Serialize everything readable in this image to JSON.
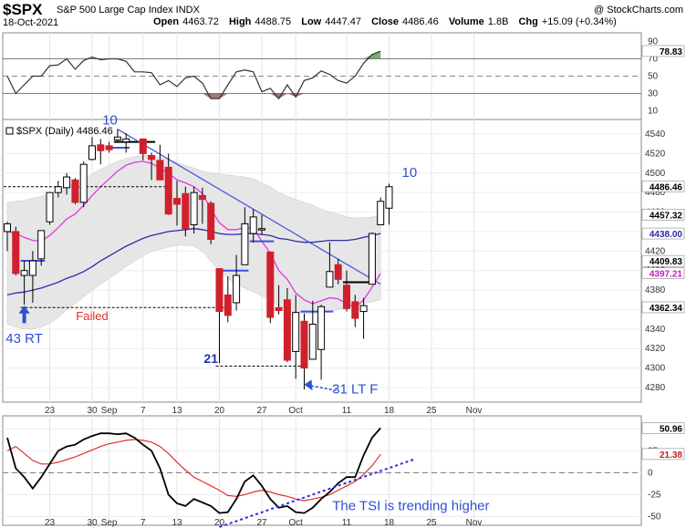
{
  "header": {
    "symbol": "$SPX",
    "description": "S&P 500 Large Cap Index  INDX",
    "date": "18-Oct-2021",
    "open_label": "Open",
    "open": "4463.72",
    "high_label": "High",
    "high": "4488.75",
    "low_label": "Low",
    "low": "4447.47",
    "close_label": "Close",
    "close": "4486.46",
    "volume_label": "Volume",
    "volume": "1.8B",
    "chg_label": "Chg",
    "chg": "+15.09 (+0.34%)",
    "watermark": "@ StockCharts.com"
  },
  "colors": {
    "up": "#ffffff",
    "down": "#d0202c",
    "outline": "#000000",
    "bb_fill": "#e6e6e6",
    "ma_short": "#e535e5",
    "ma_long": "#2c2ca8",
    "trend": "#3d4fe0",
    "tsi": "#000000",
    "tsi_signal": "#e03030",
    "rsi_line": "#333333",
    "rsi_over": "#3a8a3a",
    "rsi_under": "#8a3a3a"
  },
  "chart_data": [
    {
      "type": "candlestick",
      "panel": "price",
      "title": "$SPX (Daily) 4486.46",
      "ylim": [
        4265,
        4555
      ],
      "y_ticks": [
        4280,
        4300,
        4320,
        4340,
        4360,
        4380,
        4400,
        4420,
        4440,
        4460,
        4480,
        4500,
        4520,
        4540
      ],
      "x_ticks": [
        "23",
        "30",
        "Sep",
        "7",
        "13",
        "20",
        "27",
        "Oct",
        "11",
        "18",
        "25",
        "Nov"
      ],
      "y_price_labels": [
        {
          "label": "4486.46",
          "value": 4486.46,
          "bg": "#ffffff",
          "fg": "#000000"
        },
        {
          "label": "4457.32",
          "value": 4457.32,
          "bg": "#ffffff",
          "fg": "#000000"
        },
        {
          "label": "4438.00",
          "value": 4438.0,
          "bg": "#ffffff",
          "fg": "#2c2ca8"
        },
        {
          "label": "4409.83",
          "value": 4409.83,
          "bg": "#ffffff",
          "fg": "#000000"
        },
        {
          "label": "4397.21",
          "value": 4397.21,
          "bg": "#ffffff",
          "fg": "#c020c0"
        },
        {
          "label": "4362.34",
          "value": 4362.34,
          "bg": "#ffffff",
          "fg": "#000000"
        }
      ],
      "candles": [
        {
          "d": "2021-08-16",
          "o": 4440,
          "h": 4450,
          "l": 4420,
          "c": 4448
        },
        {
          "d": "2021-08-17",
          "o": 4440,
          "h": 4445,
          "l": 4395,
          "c": 4397
        },
        {
          "d": "2021-08-18",
          "o": 4395,
          "h": 4410,
          "l": 4365,
          "c": 4400
        },
        {
          "d": "2021-08-19",
          "o": 4395,
          "h": 4420,
          "l": 4367,
          "c": 4410
        },
        {
          "d": "2021-08-20",
          "o": 4412,
          "h": 4440,
          "l": 4405,
          "c": 4441
        },
        {
          "d": "2021-08-23",
          "o": 4450,
          "h": 4480,
          "l": 4447,
          "c": 4480
        },
        {
          "d": "2021-08-24",
          "o": 4480,
          "h": 4492,
          "l": 4475,
          "c": 4486
        },
        {
          "d": "2021-08-25",
          "o": 4485,
          "h": 4500,
          "l": 4478,
          "c": 4496
        },
        {
          "d": "2021-08-26",
          "o": 4493,
          "h": 4495,
          "l": 4468,
          "c": 4470
        },
        {
          "d": "2021-08-27",
          "o": 4470,
          "h": 4512,
          "l": 4465,
          "c": 4509
        },
        {
          "d": "2021-08-30",
          "o": 4514,
          "h": 4537,
          "l": 4513,
          "c": 4528
        },
        {
          "d": "2021-08-31",
          "o": 4529,
          "h": 4535,
          "l": 4509,
          "c": 4523
        },
        {
          "d": "2021-09-01",
          "o": 4528,
          "h": 4532,
          "l": 4521,
          "c": 4524
        },
        {
          "d": "2021-09-02",
          "o": 4534,
          "h": 4545,
          "l": 4531,
          "c": 4537
        },
        {
          "d": "2021-09-03",
          "o": 4532,
          "h": 4541,
          "l": 4521,
          "c": 4535
        },
        {
          "d": "2021-09-07",
          "o": 4535,
          "h": 4535,
          "l": 4513,
          "c": 4520
        },
        {
          "d": "2021-09-08",
          "o": 4518,
          "h": 4521,
          "l": 4493,
          "c": 4514
        },
        {
          "d": "2021-09-09",
          "o": 4513,
          "h": 4529,
          "l": 4493,
          "c": 4493
        },
        {
          "d": "2021-09-10",
          "o": 4506,
          "h": 4520,
          "l": 4457,
          "c": 4458
        },
        {
          "d": "2021-09-13",
          "o": 4474,
          "h": 4492,
          "l": 4446,
          "c": 4468
        },
        {
          "d": "2021-09-14",
          "o": 4479,
          "h": 4486,
          "l": 4435,
          "c": 4443
        },
        {
          "d": "2021-09-15",
          "o": 4447,
          "h": 4486,
          "l": 4438,
          "c": 4480
        },
        {
          "d": "2021-09-16",
          "o": 4477,
          "h": 4485,
          "l": 4448,
          "c": 4473
        },
        {
          "d": "2021-09-17",
          "o": 4469,
          "h": 4471,
          "l": 4427,
          "c": 4432
        },
        {
          "d": "2021-09-20",
          "o": 4402,
          "h": 4402,
          "l": 4305,
          "c": 4358
        },
        {
          "d": "2021-09-21",
          "o": 4375,
          "h": 4394,
          "l": 4347,
          "c": 4354
        },
        {
          "d": "2021-09-22",
          "o": 4367,
          "h": 4416,
          "l": 4359,
          "c": 4395
        },
        {
          "d": "2021-09-23",
          "o": 4406,
          "h": 4465,
          "l": 4406,
          "c": 4448
        },
        {
          "d": "2021-09-24",
          "o": 4438,
          "h": 4463,
          "l": 4429,
          "c": 4455
        },
        {
          "d": "2021-09-27",
          "o": 4442,
          "h": 4457,
          "l": 4437,
          "c": 4443
        },
        {
          "d": "2021-09-28",
          "o": 4419,
          "h": 4419,
          "l": 4346,
          "c": 4352
        },
        {
          "d": "2021-09-29",
          "o": 4362,
          "h": 4385,
          "l": 4355,
          "c": 4359
        },
        {
          "d": "2021-09-30",
          "o": 4370,
          "h": 4382,
          "l": 4306,
          "c": 4308
        },
        {
          "d": "2021-10-01",
          "o": 4317,
          "h": 4375,
          "l": 4289,
          "c": 4357
        },
        {
          "d": "2021-10-04",
          "o": 4348,
          "h": 4356,
          "l": 4278,
          "c": 4300
        },
        {
          "d": "2021-10-05",
          "o": 4309,
          "h": 4369,
          "l": 4309,
          "c": 4345
        },
        {
          "d": "2021-10-06",
          "o": 4319,
          "h": 4365,
          "l": 4288,
          "c": 4363
        },
        {
          "d": "2021-10-07",
          "o": 4383,
          "h": 4429,
          "l": 4383,
          "c": 4399
        },
        {
          "d": "2021-10-08",
          "o": 4406,
          "h": 4412,
          "l": 4386,
          "c": 4391
        },
        {
          "d": "2021-10-11",
          "o": 4385,
          "h": 4400,
          "l": 4358,
          "c": 4361
        },
        {
          "d": "2021-10-12",
          "o": 4368,
          "h": 4375,
          "l": 4342,
          "c": 4351
        },
        {
          "d": "2021-10-13",
          "o": 4358,
          "h": 4372,
          "l": 4330,
          "c": 4364
        },
        {
          "d": "2021-10-14",
          "o": 4386,
          "h": 4439,
          "l": 4386,
          "c": 4438
        },
        {
          "d": "2021-10-15",
          "o": 4447,
          "h": 4475,
          "l": 4447,
          "c": 4471
        },
        {
          "d": "2021-10-18",
          "o": 4464,
          "h": 4489,
          "l": 4447,
          "c": 4486
        }
      ],
      "ma_short": [
        4440,
        4438,
        4434,
        4431,
        4430,
        4436,
        4444,
        4453,
        4458,
        4467,
        4477,
        4486,
        4494,
        4502,
        4508,
        4511,
        4512,
        4510,
        4505,
        4500,
        4493,
        4490,
        4486,
        4479,
        4463,
        4449,
        4442,
        4442,
        4444,
        4444,
        4430,
        4418,
        4400,
        4391,
        4377,
        4370,
        4366,
        4369,
        4372,
        4371,
        4366,
        4362,
        4370,
        4383,
        4397
      ],
      "ma_long": [
        4375,
        4377,
        4378,
        4380,
        4382,
        4385,
        4388,
        4392,
        4395,
        4399,
        4404,
        4410,
        4415,
        4420,
        4425,
        4429,
        4433,
        4436,
        4438,
        4440,
        4441,
        4442,
        4443,
        4442,
        4440,
        4438,
        4437,
        4437,
        4438,
        4438,
        4437,
        4436,
        4433,
        4432,
        4430,
        4429,
        4429,
        4430,
        4431,
        4431,
        4431,
        4432,
        4434,
        4436,
        4438
      ],
      "bb_upper": [
        4470,
        4471,
        4472,
        4474,
        4476,
        4479,
        4482,
        4486,
        4490,
        4494,
        4499,
        4504,
        4508,
        4512,
        4515,
        4517,
        4518,
        4518,
        4516,
        4514,
        4511,
        4508,
        4505,
        4502,
        4500,
        4499,
        4498,
        4497,
        4496,
        4494,
        4490,
        4486,
        4480,
        4476,
        4473,
        4470,
        4467,
        4463,
        4460,
        4458,
        4455,
        4454,
        4454,
        4455,
        4456
      ],
      "bb_lower": [
        4345,
        4342,
        4340,
        4340,
        4342,
        4346,
        4352,
        4360,
        4366,
        4373,
        4380,
        4386,
        4392,
        4398,
        4404,
        4410,
        4415,
        4420,
        4422,
        4424,
        4426,
        4426,
        4425,
        4420,
        4410,
        4400,
        4392,
        4386,
        4382,
        4378,
        4374,
        4370,
        4364,
        4360,
        4357,
        4356,
        4356,
        4357,
        4358,
        4360,
        4362,
        4364,
        4366,
        4368,
        4370
      ],
      "horizontal_levels": [
        {
          "value": 4486,
          "style": "dashed",
          "color": "#000000",
          "from": "2021-08-16",
          "to": "2021-09-10"
        },
        {
          "value": 4362,
          "style": "dashed",
          "color": "#000000",
          "from": "2021-08-18",
          "to": "2021-09-21"
        },
        {
          "value": 4302,
          "style": "dashed",
          "color": "#000000",
          "from": "2021-09-20",
          "to": "2021-10-04"
        },
        {
          "value": 4410,
          "style": "solid",
          "color": "#3d4fe0",
          "from": "2021-08-18",
          "to": "2021-08-20"
        },
        {
          "value": 4532,
          "style": "solid",
          "color": "#000000",
          "from": "2021-09-02",
          "to": "2021-09-08"
        },
        {
          "value": 4526,
          "style": "solid",
          "color": "#3d4fe0",
          "from": "2021-09-01",
          "to": "2021-09-03"
        },
        {
          "value": 4400,
          "style": "solid",
          "color": "#3d4fe0",
          "from": "2021-09-20",
          "to": "2021-09-23"
        },
        {
          "value": 4430,
          "style": "solid",
          "color": "#3d4fe0",
          "from": "2021-09-24",
          "to": "2021-09-28"
        },
        {
          "value": 4358,
          "style": "solid",
          "color": "#3d4fe0",
          "from": "2021-10-04",
          "to": "2021-10-07"
        },
        {
          "value": 4388,
          "style": "solid",
          "color": "#000000",
          "from": "2021-10-11",
          "to": "2021-10-14"
        }
      ],
      "trendline": {
        "from": {
          "d": "2021-09-02",
          "v": 4545
        },
        "to": {
          "d": "2021-10-15",
          "v": 4386
        }
      },
      "annotations": [
        {
          "text": "10",
          "d": "2021-09-02",
          "v": 4550,
          "cls": "ann-blue",
          "anchor": "end"
        },
        {
          "text": "10",
          "d": "2021-10-18",
          "v": 4496,
          "cls": "ann-blue",
          "anchor": "start",
          "dx": 14
        },
        {
          "text": "Failed",
          "d": "2021-08-30",
          "v": 4349,
          "cls": "ann-red",
          "anchor": "middle"
        },
        {
          "text": "43 RT",
          "d": "2021-08-18",
          "v": 4326,
          "cls": "ann-blue",
          "anchor": "middle"
        },
        {
          "text": "21",
          "d": "2021-09-17",
          "v": 4305,
          "cls": "ann-bold",
          "anchor": "middle"
        },
        {
          "text": "31 LT F",
          "d": "2021-10-12",
          "v": 4274,
          "cls": "ann-blue",
          "anchor": "middle"
        }
      ]
    },
    {
      "type": "line",
      "panel": "rsi",
      "ylim": [
        0,
        100
      ],
      "y_ticks": [
        10,
        30,
        50,
        70,
        90
      ],
      "levels": [
        30,
        70
      ],
      "last_value_label": "78.83",
      "series": [
        {
          "values": [
            50,
            30,
            40,
            50,
            50,
            62,
            63,
            70,
            58,
            68,
            72,
            69,
            70,
            70,
            67,
            55,
            55,
            54,
            40,
            45,
            38,
            48,
            50,
            42,
            24,
            24,
            40,
            55,
            57,
            55,
            32,
            36,
            24,
            40,
            26,
            45,
            48,
            56,
            52,
            45,
            42,
            50,
            65,
            75,
            79
          ]
        }
      ]
    },
    {
      "type": "line",
      "panel": "tsi",
      "ylim": [
        -60,
        65
      ],
      "y_ticks": [
        -50,
        -25,
        0,
        25,
        50
      ],
      "zero_line": true,
      "last_value_labels": [
        "50.96",
        "21.38"
      ],
      "series": [
        {
          "values": [
            40,
            5,
            -5,
            -18,
            -5,
            10,
            25,
            30,
            32,
            38,
            42,
            45,
            45,
            44,
            45,
            40,
            32,
            25,
            5,
            -25,
            -35,
            -38,
            -30,
            -34,
            -38,
            -46,
            -45,
            -30,
            -10,
            -3,
            -15,
            -30,
            -40,
            -38,
            -45,
            -46,
            -40,
            -30,
            -22,
            -12,
            -5,
            -5,
            20,
            40,
            51
          ]
        },
        {
          "values": [
            25,
            30,
            22,
            14,
            10,
            10,
            12,
            15,
            18,
            22,
            26,
            30,
            33,
            35,
            37,
            38,
            37,
            35,
            30,
            22,
            12,
            3,
            -5,
            -10,
            -15,
            -20,
            -26,
            -27,
            -25,
            -22,
            -20,
            -22,
            -25,
            -27,
            -30,
            -32,
            -30,
            -28,
            -25,
            -20,
            -15,
            -10,
            -2,
            8,
            21
          ]
        }
      ],
      "trendline": {
        "from": {
          "d": "2021-09-20",
          "v": -62
        },
        "to": {
          "d": "2021-10-19",
          "v": 16
        }
      },
      "annotations": [
        {
          "text": "The TSI is trending higher",
          "d": "2021-10-01",
          "v": -43,
          "cls": "ann-blue",
          "anchor": "start",
          "dx": 40
        }
      ]
    }
  ]
}
